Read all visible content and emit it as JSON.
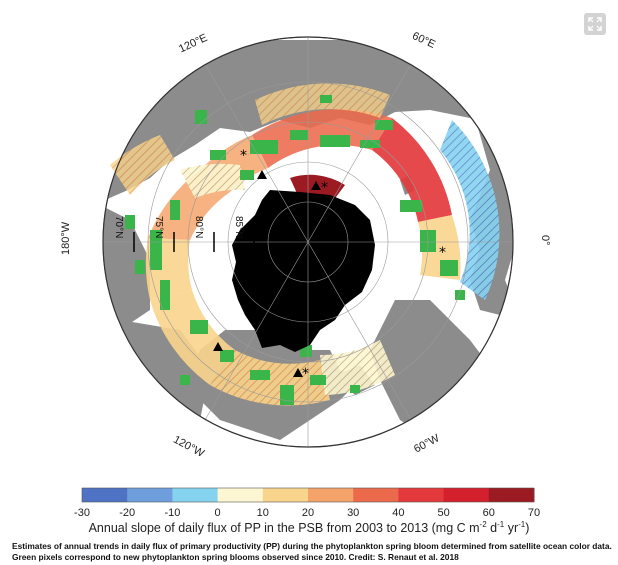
{
  "map": {
    "longitude_labels": [
      "120°E",
      "60°E",
      "0°",
      "60°W",
      "120°W",
      "180°W"
    ],
    "latitude_labels": [
      "70°N",
      "75°N",
      "80°N",
      "85°N"
    ],
    "colors": {
      "ocean": "#ffffff",
      "land": "#8c8c8c",
      "polar_ice": "#000000",
      "new_bloom": "#3ab54a"
    },
    "icons": [
      "triangle-marker",
      "asterisk-marker",
      "expand-icon"
    ]
  },
  "legend": {
    "type": "colorbar",
    "ticks": [
      "-30",
      "-20",
      "-10",
      "0",
      "10",
      "20",
      "30",
      "40",
      "50",
      "60",
      "70"
    ],
    "bins": [
      {
        "from": -30,
        "to": -20,
        "color": "#4e72c4"
      },
      {
        "from": -20,
        "to": -10,
        "color": "#6e9fdc"
      },
      {
        "from": -10,
        "to": 0,
        "color": "#86d3ef"
      },
      {
        "from": 0,
        "to": 10,
        "color": "#fdf6d2"
      },
      {
        "from": 10,
        "to": 20,
        "color": "#f9d48c"
      },
      {
        "from": 20,
        "to": 30,
        "color": "#f4a46b"
      },
      {
        "from": 30,
        "to": 40,
        "color": "#ec6a4c"
      },
      {
        "from": 40,
        "to": 50,
        "color": "#e3393c"
      },
      {
        "from": 50,
        "to": 60,
        "color": "#d41f2c"
      },
      {
        "from": 60,
        "to": 70,
        "color": "#9c1a22"
      }
    ],
    "axis_label_prefix": "Annual slope of daily flux of PP in the PSB from 2003 to 2013 (mg C m",
    "axis_label_exp1": "-2",
    "axis_label_mid": " d",
    "axis_label_exp2": "-1",
    "axis_label_mid2": " yr",
    "axis_label_exp3": "-1",
    "axis_label_suffix": ")"
  },
  "caption": {
    "line1": "Estimates of annual trends in daily flux of primary productivity (PP) during the phytoplankton spring bloom determined from satellite ocean color data.",
    "line2": "Green pixels correspond to new phytoplankton spring blooms observed since 2010. Credit: S. Renaut et al. 2018"
  }
}
